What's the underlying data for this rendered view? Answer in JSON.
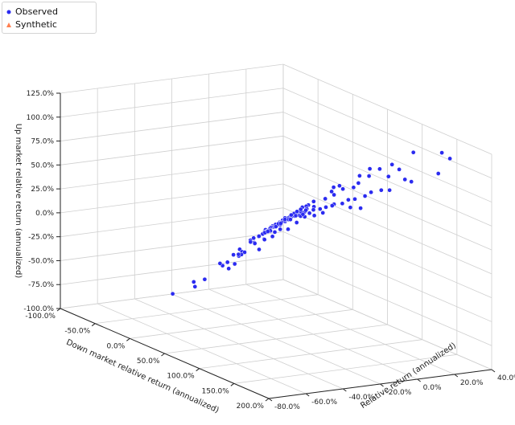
{
  "chart_data": {
    "type": "scatter3d",
    "legend": {
      "placement": "top-left",
      "entries": [
        {
          "label": "Observed",
          "marker": "circle",
          "color": "#2b2bf0"
        },
        {
          "label": "Synthetic",
          "marker": "triangle",
          "color": "#ff7f50"
        }
      ]
    },
    "axes": {
      "x": {
        "label": "Down market relative return (annualized)",
        "ticks": [
          "-100.0%",
          "-50.0%",
          "0.0%",
          "50.0%",
          "100.0%",
          "150.0%",
          "200.0%"
        ],
        "values": [
          -100,
          -50,
          0,
          50,
          100,
          150,
          200
        ],
        "range": [
          -100,
          200
        ]
      },
      "y": {
        "label": "Relative return (annualized)",
        "ticks": [
          "-80.0%",
          "-60.0%",
          "-40.0%",
          "-20.0%",
          "0.0%",
          "20.0%",
          "40.0%"
        ],
        "values": [
          -80,
          -60,
          -40,
          -20,
          0,
          20,
          40
        ],
        "range": [
          -80,
          40
        ]
      },
      "z": {
        "label": "Up market relative return (annualized)",
        "ticks": [
          "-100.0%",
          "-75.0%",
          "-50.0%",
          "-25.0%",
          "0.0%",
          "25.0%",
          "50.0%",
          "75.0%",
          "100.0%",
          "125.0%"
        ],
        "values": [
          -100,
          -75,
          -50,
          -25,
          0,
          25,
          50,
          75,
          100,
          125
        ],
        "range": [
          -100,
          125
        ]
      }
    },
    "grid": true,
    "series": [
      {
        "name": "Observed",
        "color": "#2b2bf0",
        "points": [
          [
            2,
            0,
            2
          ],
          [
            5,
            1,
            4
          ],
          [
            -3,
            -2,
            -3
          ],
          [
            8,
            0,
            6
          ],
          [
            -6,
            2,
            -4
          ],
          [
            4,
            -3,
            1
          ],
          [
            10,
            3,
            9
          ],
          [
            -8,
            -4,
            -8
          ],
          [
            0,
            5,
            4
          ],
          [
            12,
            -1,
            6
          ],
          [
            -2,
            3,
            2
          ],
          [
            6,
            4,
            8
          ],
          [
            -5,
            -1,
            -5
          ],
          [
            3,
            2,
            3
          ],
          [
            9,
            -2,
            4
          ],
          [
            -10,
            0,
            -7
          ],
          [
            15,
            5,
            14
          ],
          [
            1,
            -5,
            -4
          ],
          [
            -4,
            6,
            2
          ],
          [
            7,
            -4,
            0
          ],
          [
            14,
            0,
            10
          ],
          [
            -12,
            -3,
            -12
          ],
          [
            18,
            2,
            13
          ],
          [
            -7,
            4,
            -2
          ],
          [
            11,
            6,
            14
          ],
          [
            -1,
            -6,
            -7
          ],
          [
            20,
            -2,
            11
          ],
          [
            -14,
            1,
            -9
          ],
          [
            4,
            7,
            10
          ],
          [
            16,
            -5,
            5
          ],
          [
            -9,
            5,
            -3
          ],
          [
            22,
            4,
            18
          ],
          [
            2,
            -7,
            -6
          ],
          [
            -15,
            -5,
            -17
          ],
          [
            25,
            0,
            16
          ],
          [
            -3,
            8,
            6
          ],
          [
            13,
            8,
            19
          ],
          [
            -18,
            2,
            -12
          ],
          [
            28,
            -4,
            14
          ],
          [
            6,
            -8,
            -4
          ],
          [
            -20,
            -1,
            -17
          ],
          [
            30,
            3,
            21
          ],
          [
            8,
            9,
            15
          ],
          [
            -6,
            -8,
            -13
          ],
          [
            33,
            -1,
            19
          ],
          [
            -22,
            3,
            -15
          ],
          [
            19,
            9,
            23
          ],
          [
            35,
            6,
            27
          ],
          [
            -25,
            -4,
            -22
          ],
          [
            40,
            -3,
            21
          ],
          [
            0,
            10,
            10
          ],
          [
            -28,
            0,
            -22
          ],
          [
            45,
            2,
            28
          ],
          [
            24,
            10,
            28
          ],
          [
            -12,
            8,
            0
          ],
          [
            50,
            -2,
            27
          ],
          [
            -30,
            4,
            -20
          ],
          [
            -24,
            9,
            -10
          ],
          [
            55,
            5,
            33
          ],
          [
            -35,
            -2,
            -28
          ],
          [
            60,
            0,
            34
          ],
          [
            -16,
            -9,
            -22
          ],
          [
            38,
            11,
            35
          ],
          [
            65,
            -5,
            30
          ],
          [
            -40,
            2,
            -33
          ],
          [
            48,
            12,
            42
          ],
          [
            -33,
            8,
            -20
          ],
          [
            72,
            3,
            42
          ],
          [
            -45,
            -4,
            -40
          ],
          [
            80,
            -1,
            44
          ],
          [
            30,
            -10,
            12
          ],
          [
            -50,
            6,
            -38
          ],
          [
            58,
            13,
            51
          ],
          [
            90,
            4,
            52
          ],
          [
            -42,
            10,
            -24
          ],
          [
            100,
            -3,
            53
          ],
          [
            -55,
            1,
            -47
          ],
          [
            75,
            15,
            62
          ],
          [
            110,
            0,
            60
          ],
          [
            -60,
            -5,
            -58
          ],
          [
            120,
            5,
            69
          ],
          [
            85,
            17,
            72
          ],
          [
            -38,
            -10,
            -42
          ],
          [
            130,
            -2,
            70
          ],
          [
            -65,
            3,
            -55
          ],
          [
            140,
            3,
            78
          ],
          [
            95,
            19,
            82
          ],
          [
            -70,
            8,
            -54
          ],
          [
            160,
            0,
            85
          ],
          [
            150,
            12,
            90
          ],
          [
            -58,
            14,
            -38
          ],
          [
            -75,
            -2,
            -67
          ],
          [
            -80,
            10,
            -60
          ],
          [
            12,
            -12,
            -10
          ],
          [
            -28,
            14,
            -8
          ],
          [
            -20,
            -14,
            -35
          ],
          [
            40,
            -14,
            10
          ],
          [
            -48,
            16,
            -28
          ],
          [
            60,
            18,
            52
          ],
          [
            70,
            -12,
            32
          ],
          [
            -52,
            -12,
            -55
          ],
          [
            26,
            20,
            41
          ],
          [
            -8,
            18,
            11
          ],
          [
            105,
            20,
            77
          ],
          [
            88,
            -9,
            41
          ],
          [
            -85,
            5,
            -75
          ],
          [
            170,
            8,
            95
          ],
          [
            -90,
            -6,
            -85
          ],
          [
            115,
            22,
            87
          ],
          [
            -95,
            12,
            -75
          ],
          [
            180,
            25,
            118
          ],
          [
            125,
            -8,
            58
          ],
          [
            -18,
            22,
            4
          ],
          [
            145,
            -10,
            64
          ],
          [
            -62,
            20,
            -38
          ],
          [
            190,
            15,
            108
          ],
          [
            -30,
            26,
            -2
          ],
          [
            -72,
            -18,
            -84
          ],
          [
            42,
            28,
            56
          ],
          [
            -45,
            30,
            -12
          ],
          [
            62,
            -18,
            18
          ],
          [
            -92,
            24,
            -62
          ],
          [
            78,
            32,
            78
          ],
          [
            -3,
            34,
            30
          ],
          [
            -88,
            -24,
            -95
          ],
          [
            155,
            30,
            115
          ],
          [
            -55,
            -25,
            -72
          ],
          [
            -25,
            38,
            16
          ],
          [
            30,
            38,
            57
          ],
          [
            -70,
            36,
            -30
          ],
          [
            98,
            36,
            96
          ]
        ]
      },
      {
        "name": "Synthetic",
        "color": "#ff7f50",
        "points": []
      }
    ]
  }
}
